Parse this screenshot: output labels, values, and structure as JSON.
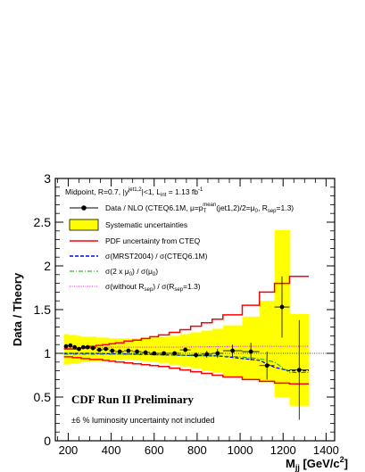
{
  "chart_data": {
    "type": "scatter",
    "xlabel_main": "M",
    "xlabel_sub": "jj",
    "xlabel_unit": "[GeV/c",
    "xlabel_sup": "2",
    "xlabel_end": "]",
    "ylabel": "Data / Theory",
    "xlim": [
      140,
      1440
    ],
    "ylim": [
      0,
      3
    ],
    "xticks": [
      200,
      400,
      600,
      800,
      1000,
      1200,
      1400
    ],
    "yticks": [
      0,
      0.5,
      1,
      1.5,
      2,
      2.5,
      3
    ],
    "ytick_labels": [
      "0",
      "0.5",
      "1",
      "1.5",
      "2",
      "2.5",
      "3"
    ],
    "header": {
      "t1": "Midpoint, R=0.7, |y",
      "t1sup": "jet1,2",
      "t2": "|<1, L",
      "t2sub": "int",
      "t3": " = 1.13 fb",
      "t3sup": "-1"
    },
    "legend": {
      "data": {
        "a": "Data / NLO (CTEQ6.1M, μ=p",
        "a_sub": "T",
        "a_sup": "mean",
        "b": "(jet1,2)/2=μ",
        "b_sub": "0",
        "c": ", R",
        "c_sub": "sep",
        "d": "=1.3)"
      },
      "syst": "Systematic uncertainties",
      "pdf": "PDF uncertainty from CTEQ",
      "mrst": "σ(MRST2004) / σ(CTEQ6.1M)",
      "scale": {
        "a": "σ(2 x μ",
        "a_sub": "0",
        "b": ") / σ(μ",
        "b_sub": "0",
        "c": ")"
      },
      "rsep": {
        "a": "σ(without R",
        "a_sub": "sep",
        "b": ") / σ(R",
        "b_sub": "sep",
        "c": "=1.3)"
      }
    },
    "annotation_title": "CDF Run II Preliminary",
    "annotation_note": "±6 % luminosity uncertainty not included",
    "bin_edges": [
      180,
      200,
      220,
      240,
      260,
      280,
      300,
      330,
      360,
      390,
      420,
      460,
      500,
      540,
      580,
      620,
      670,
      720,
      770,
      820,
      870,
      920,
      1010,
      1090,
      1160,
      1230,
      1320
    ],
    "data_points": {
      "x": [
        190,
        210,
        230,
        250,
        270,
        290,
        315,
        345,
        375,
        405,
        440,
        480,
        520,
        560,
        600,
        645,
        695,
        745,
        795,
        845,
        895,
        965,
        1050,
        1125,
        1195,
        1275
      ],
      "y": [
        1.08,
        1.09,
        1.07,
        1.05,
        1.07,
        1.07,
        1.06,
        1.04,
        1.05,
        1.03,
        1.02,
        1.03,
        1.02,
        1.01,
        1.0,
        1.0,
        1.0,
        1.04,
        0.98,
        0.99,
        1.0,
        1.03,
        1.02,
        0.86,
        1.53,
        0.81
      ],
      "err": [
        0.01,
        0.01,
        0.01,
        0.01,
        0.01,
        0.01,
        0.01,
        0.01,
        0.01,
        0.01,
        0.01,
        0.01,
        0.01,
        0.01,
        0.01,
        0.01,
        0.02,
        0.02,
        0.03,
        0.04,
        0.05,
        0.07,
        0.1,
        0.16,
        0.35,
        0.57
      ]
    },
    "systematic_band": {
      "lower": [
        0.87,
        0.88,
        0.88,
        0.89,
        0.9,
        0.9,
        0.91,
        0.91,
        0.92,
        0.92,
        0.93,
        0.93,
        0.92,
        0.91,
        0.9,
        0.89,
        0.87,
        0.85,
        0.83,
        0.8,
        0.78,
        0.74,
        0.7,
        0.67,
        0.5,
        0.4
      ],
      "upper": [
        1.22,
        1.21,
        1.21,
        1.2,
        1.19,
        1.19,
        1.19,
        1.18,
        1.18,
        1.17,
        1.17,
        1.17,
        1.17,
        1.18,
        1.18,
        1.19,
        1.2,
        1.22,
        1.24,
        1.26,
        1.28,
        1.32,
        1.42,
        1.6,
        2.41,
        1.45
      ]
    },
    "pdf_band": {
      "x": [
        180,
        200,
        220,
        240,
        260,
        280,
        300,
        330,
        360,
        390,
        420,
        460,
        500,
        540,
        580,
        620,
        670,
        720,
        770,
        820,
        870,
        920,
        1010,
        1090,
        1160,
        1230,
        1320
      ],
      "upper": [
        1.05,
        1.05,
        1.05,
        1.06,
        1.06,
        1.07,
        1.08,
        1.09,
        1.1,
        1.11,
        1.12,
        1.14,
        1.15,
        1.17,
        1.19,
        1.21,
        1.24,
        1.27,
        1.31,
        1.35,
        1.39,
        1.44,
        1.55,
        1.7,
        1.8,
        1.88,
        1.88
      ],
      "lower": [
        0.96,
        0.96,
        0.95,
        0.95,
        0.94,
        0.94,
        0.93,
        0.93,
        0.92,
        0.91,
        0.9,
        0.89,
        0.88,
        0.87,
        0.86,
        0.85,
        0.83,
        0.81,
        0.79,
        0.77,
        0.75,
        0.73,
        0.7,
        0.68,
        0.66,
        0.65,
        0.65
      ]
    },
    "mrst": {
      "x": [
        180,
        300,
        500,
        700,
        900,
        1090,
        1160,
        1230,
        1320
      ],
      "y": [
        1.0,
        1.0,
        0.99,
        0.98,
        0.97,
        0.92,
        0.84,
        0.8,
        0.8
      ]
    },
    "scale_ratio": {
      "x": [
        180,
        300,
        500,
        700,
        900,
        1000,
        1090,
        1160,
        1230,
        1320
      ],
      "y": [
        0.99,
        0.99,
        0.99,
        0.98,
        0.97,
        0.96,
        0.94,
        0.9,
        0.78,
        0.78
      ]
    },
    "rsep_ratio": {
      "x": [
        180,
        400,
        700,
        1000,
        1320
      ],
      "y": [
        1.06,
        1.07,
        1.07,
        1.08,
        1.08
      ]
    },
    "colors": {
      "systematic": "#ffff00",
      "pdf": "#ff0000",
      "mrst": "#0000ff",
      "scale": "#00a000",
      "rsep": "#ff00ff",
      "data": "#000000"
    }
  }
}
